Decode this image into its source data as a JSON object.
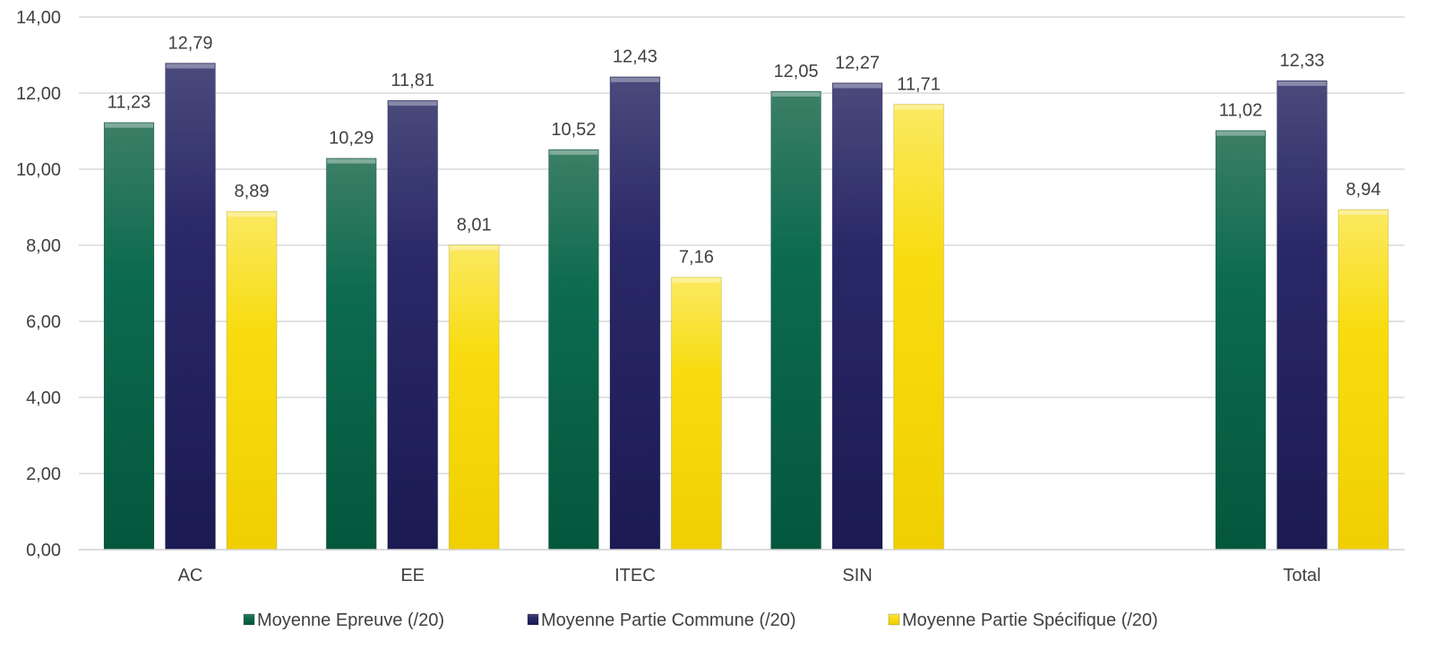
{
  "chart_data": {
    "type": "bar",
    "categories": [
      "AC",
      "EE",
      "ITEC",
      "SIN",
      "",
      "Total"
    ],
    "series": [
      {
        "name": "Moyenne Epreuve (/20)",
        "color": "#0b6a4e",
        "values": [
          11.23,
          10.29,
          10.52,
          12.05,
          null,
          11.02
        ],
        "labels": [
          "11,23",
          "10,29",
          "10,52",
          "12,05",
          "",
          "11,02"
        ]
      },
      {
        "name": "Moyenne Partie Commune (/20)",
        "color": "#2b2a6b",
        "values": [
          12.79,
          11.81,
          12.43,
          12.27,
          null,
          12.33
        ],
        "labels": [
          "12,79",
          "11,81",
          "12,43",
          "12,27",
          "",
          "12,33"
        ]
      },
      {
        "name": "Moyenne Partie Spécifique (/20)",
        "color": "#f5d900",
        "values": [
          8.89,
          8.01,
          7.16,
          11.71,
          null,
          8.94
        ],
        "labels": [
          "8,89",
          "8,01",
          "7,16",
          "11,71",
          "",
          "8,94"
        ]
      }
    ],
    "ylim": [
      0,
      14
    ],
    "yticks": [
      0,
      2,
      4,
      6,
      8,
      10,
      12,
      14
    ],
    "ytick_labels": [
      "0,00",
      "2,00",
      "4,00",
      "6,00",
      "8,00",
      "10,00",
      "12,00",
      "14,00"
    ],
    "title": "",
    "xlabel": "",
    "ylabel": "",
    "grid": true,
    "legend_position": "bottom"
  }
}
